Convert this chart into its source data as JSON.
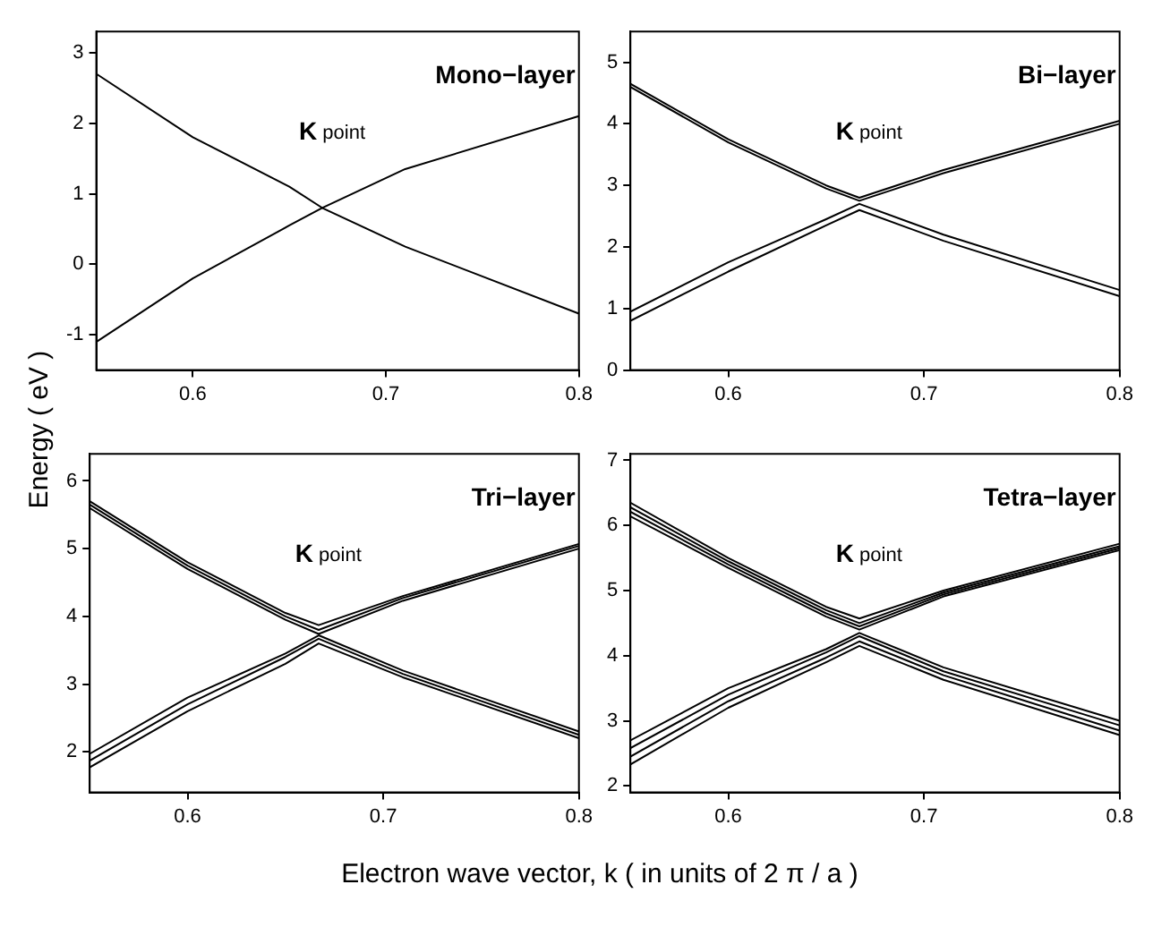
{
  "chart_data": [
    {
      "type": "line",
      "title": "Mono−layer",
      "ylabel": "Energy ( eV )",
      "annotations": [
        "K point"
      ],
      "x": [
        0.55,
        0.6,
        0.65,
        0.667,
        0.71,
        0.8
      ],
      "xlim": [
        0.55,
        0.8
      ],
      "xticks": [
        0.6,
        0.7,
        0.8
      ],
      "ylim": [
        -1.5,
        3.3
      ],
      "yticks": [
        -1,
        0,
        1,
        2,
        3
      ],
      "marker": "none",
      "line_style": "solid",
      "grid": false,
      "legend": false,
      "series": [
        {
          "color": "#000000",
          "values": [
            2.7,
            1.8,
            1.1,
            0.8,
            0.25,
            -0.7
          ]
        },
        {
          "color": "#000000",
          "values": [
            -1.1,
            -0.2,
            0.55,
            0.8,
            1.35,
            2.1
          ]
        }
      ]
    },
    {
      "type": "line",
      "title": "Bi−layer",
      "annotations": [
        "K point"
      ],
      "x": [
        0.55,
        0.6,
        0.65,
        0.667,
        0.71,
        0.8
      ],
      "xlim": [
        0.55,
        0.8
      ],
      "xticks": [
        0.6,
        0.7,
        0.8
      ],
      "ylim": [
        0,
        5.5
      ],
      "yticks": [
        0,
        1,
        2,
        3,
        4,
        5
      ],
      "marker": "none",
      "line_style": "solid",
      "grid": false,
      "legend": false,
      "series": [
        {
          "color": "#000000",
          "values": [
            4.65,
            3.75,
            3.0,
            2.8,
            3.25,
            4.05
          ]
        },
        {
          "color": "#000000",
          "values": [
            4.6,
            3.7,
            2.95,
            2.75,
            3.2,
            4.0
          ]
        },
        {
          "color": "#000000",
          "values": [
            0.95,
            1.75,
            2.45,
            2.7,
            2.2,
            1.3
          ]
        },
        {
          "color": "#000000",
          "values": [
            0.8,
            1.6,
            2.35,
            2.6,
            2.1,
            1.2
          ]
        }
      ]
    },
    {
      "type": "line",
      "title": "Tri−layer",
      "xlabel": "Electron wave vector, k ( in units of 2 π / a )",
      "annotations": [
        "K point"
      ],
      "x": [
        0.55,
        0.6,
        0.65,
        0.667,
        0.71,
        0.8
      ],
      "xlim": [
        0.55,
        0.8
      ],
      "xticks": [
        0.6,
        0.7,
        0.8
      ],
      "ylim": [
        1.4,
        6.4
      ],
      "yticks": [
        2,
        3,
        4,
        5,
        6
      ],
      "marker": "none",
      "line_style": "solid",
      "grid": false,
      "legend": false,
      "series": [
        {
          "color": "#000000",
          "values": [
            5.7,
            4.8,
            4.05,
            3.87,
            4.3,
            5.07
          ]
        },
        {
          "color": "#000000",
          "values": [
            5.65,
            4.75,
            4.0,
            3.8,
            4.27,
            5.04
          ]
        },
        {
          "color": "#000000",
          "values": [
            5.6,
            4.7,
            3.95,
            3.74,
            4.23,
            5.0
          ]
        },
        {
          "color": "#000000",
          "values": [
            1.97,
            2.8,
            3.45,
            3.72,
            3.2,
            2.3
          ]
        },
        {
          "color": "#000000",
          "values": [
            1.87,
            2.7,
            3.4,
            3.67,
            3.15,
            2.25
          ]
        },
        {
          "color": "#000000",
          "values": [
            1.77,
            2.6,
            3.3,
            3.6,
            3.1,
            2.2
          ]
        }
      ]
    },
    {
      "type": "line",
      "title": "Tetra−layer",
      "annotations": [
        "K point"
      ],
      "x": [
        0.55,
        0.6,
        0.65,
        0.667,
        0.71,
        0.8
      ],
      "xlim": [
        0.55,
        0.8
      ],
      "xticks": [
        0.6,
        0.7,
        0.8
      ],
      "ylim": [
        1.9,
        7.1
      ],
      "yticks": [
        2,
        3,
        4,
        5,
        6,
        7
      ],
      "marker": "none",
      "line_style": "solid",
      "grid": false,
      "legend": false,
      "series": [
        {
          "color": "#000000",
          "values": [
            6.35,
            5.5,
            4.75,
            4.57,
            5.0,
            5.72
          ]
        },
        {
          "color": "#000000",
          "values": [
            6.28,
            5.45,
            4.7,
            4.5,
            4.97,
            5.68
          ]
        },
        {
          "color": "#000000",
          "values": [
            6.21,
            5.4,
            4.65,
            4.45,
            4.94,
            5.65
          ]
        },
        {
          "color": "#000000",
          "values": [
            6.14,
            5.35,
            4.6,
            4.4,
            4.91,
            5.62
          ]
        },
        {
          "color": "#000000",
          "values": [
            2.7,
            3.5,
            4.1,
            4.35,
            3.82,
            3.0
          ]
        },
        {
          "color": "#000000",
          "values": [
            2.58,
            3.4,
            4.05,
            4.3,
            3.76,
            2.93
          ]
        },
        {
          "color": "#000000",
          "values": [
            2.45,
            3.3,
            3.97,
            4.22,
            3.7,
            2.85
          ]
        },
        {
          "color": "#000000",
          "values": [
            2.33,
            3.2,
            3.9,
            4.15,
            3.63,
            2.78
          ]
        }
      ]
    }
  ]
}
